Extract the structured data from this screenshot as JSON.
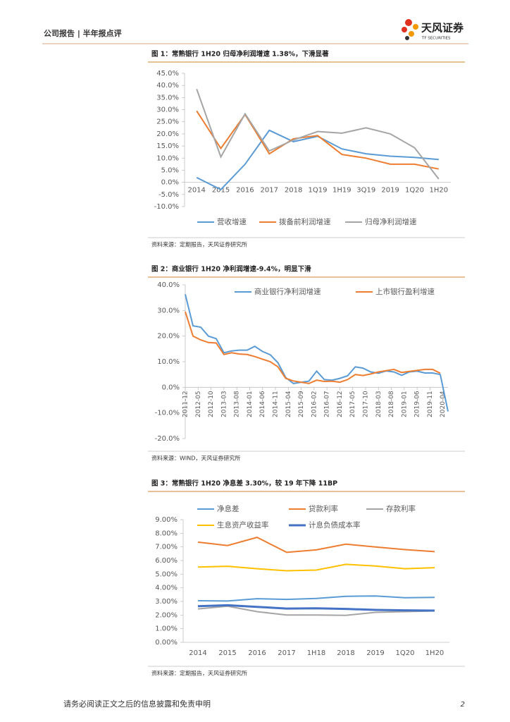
{
  "header": {
    "section": "公司报告 | 半年报点评",
    "logo": "天风证券",
    "logo_sub": "TF SECURITIES"
  },
  "chart_data": [
    {
      "type": "line",
      "title": "图 1：常熟银行 1H20 归母净利润增速 1.38%，下滑显著",
      "source": "资料来源：定期报告，天风证券研究所",
      "categories": [
        "2014",
        "2015",
        "2016",
        "2017",
        "2018",
        "1Q19",
        "1H19",
        "3Q19",
        "2019",
        "1Q20",
        "1H20"
      ],
      "series": [
        {
          "name": "营收增速",
          "color": "#5b9bd5",
          "values": [
            2.0,
            -3.0,
            7.5,
            21.5,
            16.8,
            19.0,
            13.8,
            11.8,
            10.8,
            10.3,
            9.4
          ]
        },
        {
          "name": "拨备前利润增速",
          "color": "#ed7d31",
          "values": [
            29.5,
            14.0,
            28.0,
            11.8,
            18.0,
            19.3,
            11.5,
            10.0,
            7.5,
            7.5,
            5.5
          ]
        },
        {
          "name": "归母净利润增速",
          "color": "#a5a5a5",
          "values": [
            38.5,
            10.5,
            28.3,
            13.0,
            17.5,
            21.0,
            20.3,
            22.5,
            20.0,
            14.3,
            1.38
          ]
        }
      ],
      "ylim": [
        -10,
        45
      ],
      "yticks": [
        {
          "value": -10,
          "label": "-10.0%"
        },
        {
          "value": -5,
          "label": "-5.0%"
        },
        {
          "value": 0,
          "label": "0.0%"
        },
        {
          "value": 5,
          "label": "5.0%"
        },
        {
          "value": 10,
          "label": "10.0%"
        },
        {
          "value": 15,
          "label": "15.0%"
        },
        {
          "value": 20,
          "label": "20.0%"
        },
        {
          "value": 25,
          "label": "25.0%"
        },
        {
          "value": 30,
          "label": "30.0%"
        },
        {
          "value": 35,
          "label": "35.0%"
        },
        {
          "value": 40,
          "label": "40.0%"
        },
        {
          "value": 45,
          "label": "45.0%"
        }
      ],
      "legend": "bottom"
    },
    {
      "type": "line",
      "title": "图 2：商业银行 1H20 净利润增速-9.4%，明显下滑",
      "source": "资料来源：WIND，天风证券研究所",
      "x": [
        "2011-12",
        "2012-03",
        "2012-06",
        "2012-09",
        "2012-12",
        "2013-03",
        "2013-06",
        "2013-09",
        "2013-12",
        "2014-03",
        "2014-06",
        "2014-09",
        "2014-12",
        "2015-03",
        "2015-06",
        "2015-09",
        "2015-12",
        "2016-03",
        "2016-06",
        "2016-09",
        "2016-12",
        "2017-03",
        "2017-06",
        "2017-09",
        "2017-12",
        "2018-03",
        "2018-06",
        "2018-09",
        "2018-12",
        "2019-03",
        "2019-06",
        "2019-09",
        "2019-12",
        "2020-03",
        "2020-06"
      ],
      "series": [
        {
          "name": "商业银行净利润增速",
          "color": "#5b9bd5",
          "values": [
            36.3,
            24.0,
            23.5,
            20.0,
            19.0,
            13.5,
            14.2,
            14.5,
            14.5,
            16.0,
            14.0,
            12.7,
            9.6,
            3.8,
            1.5,
            2.0,
            2.4,
            6.3,
            3.0,
            2.8,
            3.5,
            4.5,
            8.0,
            7.5,
            6.0,
            5.5,
            6.4,
            6.0,
            4.7,
            6.0,
            6.3,
            5.6,
            5.6,
            5.0,
            -9.4
          ]
        },
        {
          "name": "上市银行盈利增速",
          "color": "#ed7d31",
          "values": [
            29.5,
            20.0,
            18.5,
            17.5,
            17.3,
            12.8,
            13.5,
            13.0,
            12.8,
            12.0,
            11.0,
            10.0,
            8.0,
            3.5,
            2.5,
            2.0,
            1.5,
            2.8,
            2.3,
            2.4,
            2.0,
            3.0,
            5.0,
            4.6,
            5.2,
            6.0,
            6.5,
            7.0,
            5.8,
            6.2,
            6.6,
            7.0,
            7.0,
            5.5,
            null
          ]
        }
      ],
      "xlim": [
        "2011-12",
        "2020-06"
      ],
      "xticks": [
        "2011-12",
        "2012-05",
        "2012-10",
        "2013-03",
        "2013-08",
        "2014-01",
        "2014-06",
        "2014-11",
        "2015-04",
        "2015-09",
        "2016-02",
        "2016-07",
        "2016-12",
        "2017-05",
        "2017-10",
        "2018-03",
        "2018-08",
        "2019-01",
        "2019-06",
        "2019-11",
        "2020-04"
      ],
      "ylim": [
        -20,
        40
      ],
      "yticks": [
        {
          "value": -20,
          "label": "-20.0%"
        },
        {
          "value": -10,
          "label": "-10.0%"
        },
        {
          "value": 0,
          "label": "0.0%"
        },
        {
          "value": 10,
          "label": "10.0%"
        },
        {
          "value": 20,
          "label": "20.0%"
        },
        {
          "value": 30,
          "label": "30.0%"
        },
        {
          "value": 40,
          "label": "40.0%"
        }
      ],
      "legend": "top"
    },
    {
      "type": "line",
      "title": "图 3：常熟银行 1H20 净息差 3.30%，较 19 年下降 11BP",
      "source": "资料来源：定期报告，天风证券研究所",
      "categories": [
        "2014",
        "2015",
        "2016",
        "2017",
        "1H18",
        "2018",
        "2019",
        "1Q20",
        "1H20"
      ],
      "series": [
        {
          "name": "净息差",
          "color": "#5b9bd5",
          "values": [
            3.05,
            3.03,
            3.2,
            3.15,
            3.22,
            3.38,
            3.4,
            3.27,
            3.3
          ]
        },
        {
          "name": "贷款利率",
          "color": "#ed7d31",
          "values": [
            7.35,
            7.1,
            7.7,
            6.6,
            6.78,
            7.2,
            7.0,
            6.8,
            6.65
          ]
        },
        {
          "name": "存款利率",
          "color": "#a5a5a5",
          "values": [
            2.45,
            2.65,
            2.25,
            2.0,
            2.0,
            1.98,
            2.2,
            2.25,
            2.3
          ]
        },
        {
          "name": "生息资产收益率",
          "color": "#ffc000",
          "values": [
            5.52,
            5.58,
            5.4,
            5.25,
            5.3,
            5.72,
            5.6,
            5.4,
            5.48
          ]
        },
        {
          "name": "计息负债成本率",
          "color": "#4472c4",
          "values": [
            2.65,
            2.72,
            2.6,
            2.48,
            2.5,
            2.45,
            2.38,
            2.35,
            2.33
          ]
        }
      ],
      "ylim": [
        0,
        9
      ],
      "yticks": [
        {
          "value": 0,
          "label": "0.00%"
        },
        {
          "value": 1,
          "label": "1.00%"
        },
        {
          "value": 2,
          "label": "2.00%"
        },
        {
          "value": 3,
          "label": "3.00%"
        },
        {
          "value": 4,
          "label": "4.00%"
        },
        {
          "value": 5,
          "label": "5.00%"
        },
        {
          "value": 6,
          "label": "6.00%"
        },
        {
          "value": 7,
          "label": "7.00%"
        },
        {
          "value": 8,
          "label": "8.00%"
        },
        {
          "value": 9,
          "label": "9.00%"
        }
      ],
      "legend": "top"
    }
  ],
  "footer": {
    "disclaimer": "请务必阅读正文之后的信息披露和免责申明",
    "page": "2"
  }
}
